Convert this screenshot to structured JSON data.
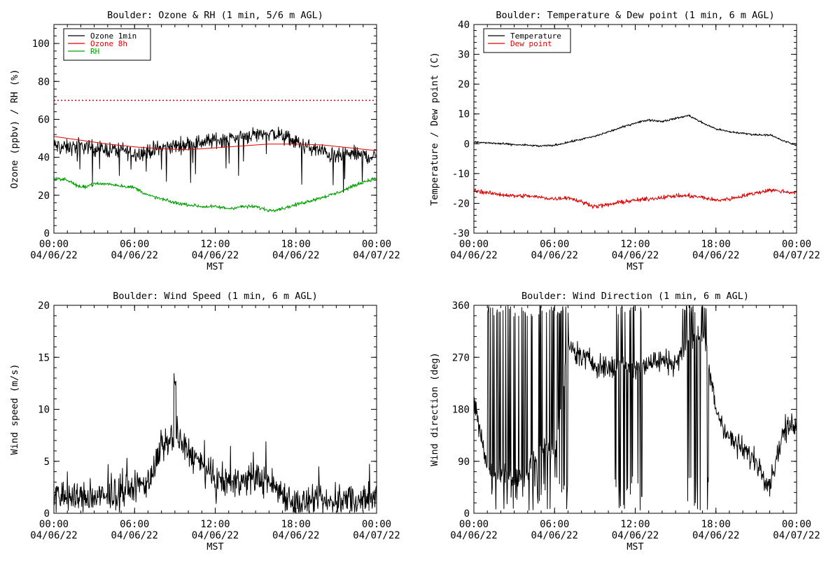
{
  "chart_data": [
    {
      "id": "ozone_rh",
      "type": "line",
      "title": "Boulder: Ozone & RH (1 min, 5/6 m AGL)",
      "ylabel": "Ozone (ppbv) / RH (%)",
      "xlabel": "MST",
      "ylim": [
        0,
        110
      ],
      "yticks": [
        0,
        20,
        40,
        60,
        80,
        100
      ],
      "xlim_hours": [
        0,
        24
      ],
      "xticks": [
        {
          "time": "00:00",
          "date": "04/06/22",
          "hour": 0
        },
        {
          "time": "06:00",
          "date": "04/06/22",
          "hour": 6
        },
        {
          "time": "12:00",
          "date": "04/06/22",
          "hour": 12
        },
        {
          "time": "18:00",
          "date": "04/06/22",
          "hour": 18
        },
        {
          "time": "00:00",
          "date": "04/07/22",
          "hour": 24
        }
      ],
      "reference_lines": [
        {
          "y": 70,
          "color": "#e00000",
          "style": "dotted"
        }
      ],
      "legend": {
        "position": "top-left"
      },
      "series": [
        {
          "name": "Ozone 1min",
          "color": "#000000",
          "x": [
            0,
            1,
            2,
            3,
            4,
            5,
            6,
            7,
            8,
            9,
            10,
            11,
            12,
            13,
            14,
            15,
            16,
            17,
            18,
            19,
            20,
            21,
            22,
            23,
            24
          ],
          "y": [
            46,
            45,
            46,
            45,
            44,
            44,
            42,
            43,
            45,
            46,
            47,
            48,
            49,
            50,
            51,
            52,
            53,
            51,
            48,
            45,
            43,
            40,
            42,
            41,
            40
          ],
          "noise": 3.5,
          "spikes": 35
        },
        {
          "name": "Ozone 8h",
          "color": "#e00000",
          "x": [
            0,
            2,
            4,
            6,
            8,
            10,
            12,
            14,
            16,
            18,
            20,
            22,
            24
          ],
          "y": [
            51,
            49,
            47,
            45.5,
            44.5,
            44,
            45,
            46,
            47,
            47,
            46.5,
            45,
            43.5
          ]
        },
        {
          "name": "RH",
          "color": "#00a000",
          "x": [
            0,
            1,
            2,
            3,
            4,
            5,
            6,
            7,
            8,
            9,
            10,
            11,
            12,
            13,
            14,
            15,
            16,
            17,
            18,
            19,
            20,
            21,
            22,
            23,
            24
          ],
          "y": [
            29,
            28,
            24,
            26,
            26,
            25,
            24,
            20,
            18,
            16,
            15,
            14,
            14,
            13,
            14,
            14,
            12,
            13,
            15,
            17,
            19,
            21,
            24,
            27,
            29
          ],
          "noise": 0.8
        }
      ]
    },
    {
      "id": "temp_dew",
      "type": "line",
      "title": "Boulder: Temperature & Dew point (1 min, 6 m AGL)",
      "ylabel": "Temperature / Dew point (C)",
      "xlabel": "MST",
      "ylim": [
        -30,
        40
      ],
      "yticks": [
        -30,
        -20,
        -10,
        0,
        10,
        20,
        30,
        40
      ],
      "xlim_hours": [
        0,
        24
      ],
      "xticks": [
        {
          "time": "00:00",
          "date": "04/06/22",
          "hour": 0
        },
        {
          "time": "06:00",
          "date": "04/06/22",
          "hour": 6
        },
        {
          "time": "12:00",
          "date": "04/06/22",
          "hour": 12
        },
        {
          "time": "18:00",
          "date": "04/06/22",
          "hour": 18
        },
        {
          "time": "00:00",
          "date": "04/07/22",
          "hour": 24
        }
      ],
      "legend": {
        "position": "top-left"
      },
      "series": [
        {
          "name": "Temperature",
          "color": "#000000",
          "x": [
            0,
            1,
            2,
            3,
            4,
            5,
            6,
            7,
            8,
            9,
            10,
            11,
            12,
            13,
            14,
            15,
            16,
            17,
            18,
            19,
            20,
            21,
            22,
            23,
            24
          ],
          "y": [
            0.5,
            0.3,
            0,
            -0.3,
            -0.5,
            -0.8,
            -0.5,
            0.5,
            1.5,
            2.5,
            4,
            5.5,
            7,
            8,
            7.5,
            8.5,
            9.5,
            7,
            5,
            4,
            3.5,
            3,
            3,
            1,
            -0.5
          ],
          "noise": 0.3
        },
        {
          "name": "Dew point",
          "color": "#e00000",
          "x": [
            0,
            1,
            2,
            3,
            4,
            5,
            6,
            7,
            8,
            9,
            10,
            11,
            12,
            13,
            14,
            15,
            16,
            17,
            18,
            19,
            20,
            21,
            22,
            23,
            24
          ],
          "y": [
            -15.5,
            -16.5,
            -17,
            -17.5,
            -17.5,
            -18,
            -18.5,
            -18,
            -19.5,
            -21,
            -20.5,
            -19.5,
            -19,
            -18.5,
            -18,
            -17.5,
            -17.5,
            -18,
            -19,
            -18.5,
            -17.5,
            -16.5,
            -15.5,
            -16,
            -16.5
          ],
          "noise": 0.6
        }
      ]
    },
    {
      "id": "wind_speed",
      "type": "line",
      "title": "Boulder: Wind Speed (1 min, 6 m AGL)",
      "ylabel": "Wind speed (m/s)",
      "xlabel": "MST",
      "ylim": [
        0,
        20
      ],
      "yticks": [
        0,
        5,
        10,
        15,
        20
      ],
      "xlim_hours": [
        0,
        24
      ],
      "xticks": [
        {
          "time": "00:00",
          "date": "04/06/22",
          "hour": 0
        },
        {
          "time": "06:00",
          "date": "04/06/22",
          "hour": 6
        },
        {
          "time": "12:00",
          "date": "04/06/22",
          "hour": 12
        },
        {
          "time": "18:00",
          "date": "04/06/22",
          "hour": 18
        },
        {
          "time": "00:00",
          "date": "04/07/22",
          "hour": 24
        }
      ],
      "series": [
        {
          "name": "",
          "color": "#000000",
          "x": [
            0,
            1,
            2,
            3,
            4,
            5,
            6,
            7,
            8,
            9,
            10,
            11,
            12,
            13,
            14,
            15,
            16,
            17,
            18,
            19,
            20,
            21,
            22,
            23,
            24
          ],
          "y": [
            1.5,
            1.5,
            1.5,
            1.5,
            1.5,
            2,
            2.5,
            3,
            6,
            7.5,
            6,
            4.5,
            3,
            3,
            3,
            3.5,
            3,
            2,
            1,
            1,
            1,
            1,
            1.5,
            1,
            1.5
          ],
          "noise": 1.3,
          "peak": {
            "x": 9,
            "y": 13.5
          }
        }
      ]
    },
    {
      "id": "wind_dir",
      "type": "line",
      "title": "Boulder: Wind Direction (1 min, 6 m AGL)",
      "ylabel": "Wind direction (deg)",
      "xlabel": "MST",
      "ylim": [
        0,
        360
      ],
      "yticks": [
        0,
        90,
        180,
        270,
        360
      ],
      "xlim_hours": [
        0,
        24
      ],
      "xticks": [
        {
          "time": "00:00",
          "date": "04/06/22",
          "hour": 0
        },
        {
          "time": "06:00",
          "date": "04/06/22",
          "hour": 6
        },
        {
          "time": "12:00",
          "date": "04/06/22",
          "hour": 12
        },
        {
          "time": "18:00",
          "date": "04/06/22",
          "hour": 18
        },
        {
          "time": "00:00",
          "date": "04/07/22",
          "hour": 24
        }
      ],
      "series": [
        {
          "name": "",
          "color": "#000000",
          "x": [
            0,
            1,
            2,
            3,
            4,
            5,
            6,
            7,
            8,
            9,
            10,
            11,
            12,
            13,
            14,
            15,
            16,
            17,
            18,
            19,
            20,
            21,
            22,
            23,
            24
          ],
          "y": [
            200,
            80,
            70,
            60,
            70,
            120,
            100,
            290,
            270,
            260,
            250,
            260,
            255,
            260,
            265,
            260,
            300,
            320,
            180,
            130,
            110,
            90,
            50,
            140,
            160
          ],
          "noise": 18,
          "wrap_segments": [
            [
              1.0,
              7.0
            ],
            [
              10.5,
              12.5
            ],
            [
              15.5,
              17.5
            ]
          ]
        }
      ]
    }
  ]
}
